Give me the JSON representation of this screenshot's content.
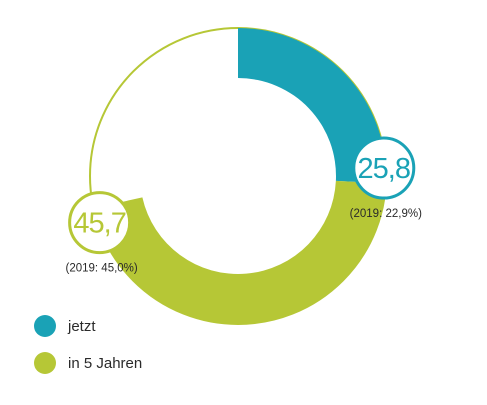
{
  "colors": {
    "series_1": "#1aa2b6",
    "series_2": "#b6c736",
    "ring_outline": "#b6c736",
    "text": "#2a2a2a",
    "background": "#ffffff"
  },
  "chart_data": {
    "type": "pie",
    "variant": "donut",
    "title": "",
    "scale_max": 100,
    "series": [
      {
        "name": "jetzt",
        "value": 25.8,
        "value_label": "25,8",
        "annotation": "(2019: 22,9%)",
        "color": "#1aa2b6"
      },
      {
        "name": "in 5 Jahren",
        "value": 45.7,
        "value_label": "45,7",
        "annotation": "(2019: 45,0%)",
        "color": "#b6c736"
      }
    ],
    "legend": {
      "position": "bottom-left",
      "entries": [
        "jetzt",
        "in 5 Jahren"
      ]
    }
  }
}
